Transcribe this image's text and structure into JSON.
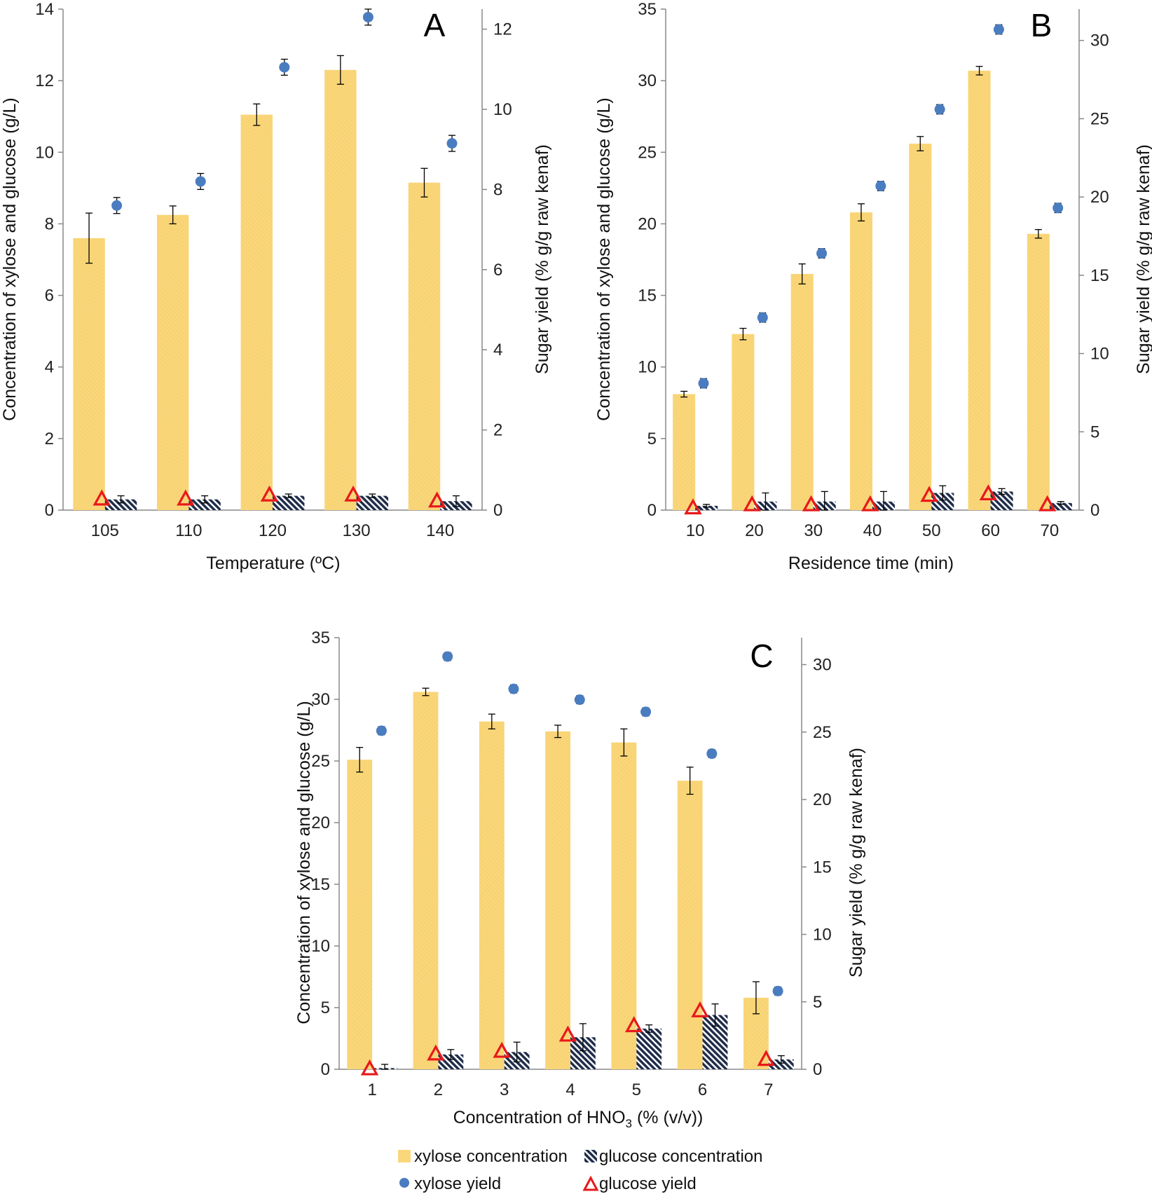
{
  "colors": {
    "xylose_bar": "#FAD77B",
    "glucose_bar_stripe": "#1F2D4A",
    "xylose_yield": "#4A7CC0",
    "glucose_yield": "#E8191B",
    "axis": "#888888"
  },
  "legend": {
    "xylose_concentration": "xylose concentration",
    "glucose_concentration": "glucose concentration",
    "xylose_yield": "xylose yield",
    "glucose_yield": "glucose yield"
  },
  "chart_data": [
    {
      "panel": "A",
      "type": "bar",
      "xlabel": "Temperature (ºC)",
      "ylabel": "Concentration of xylose and glucose (g/L)",
      "y2label": "Sugar yield (% g/g raw kenaf)",
      "ylim": [
        0,
        14
      ],
      "yticks": [
        "0",
        "2",
        "4",
        "6",
        "8",
        "10",
        "12",
        "14"
      ],
      "y2lim": [
        0,
        12.5
      ],
      "y2ticks": [
        "0",
        "2",
        "4",
        "6",
        "8",
        "10",
        "12"
      ],
      "categories": [
        "105",
        "110",
        "120",
        "130",
        "140"
      ],
      "series": [
        {
          "name": "xylose concentration",
          "kind": "bar",
          "values": [
            7.6,
            8.25,
            11.05,
            12.3,
            9.15
          ],
          "errors": [
            0.7,
            0.25,
            0.3,
            0.4,
            0.4
          ]
        },
        {
          "name": "glucose concentration",
          "kind": "bar",
          "values": [
            0.3,
            0.3,
            0.4,
            0.4,
            0.25
          ],
          "errors": [
            0.1,
            0.1,
            0.05,
            0.05,
            0.15
          ]
        },
        {
          "name": "xylose yield",
          "kind": "scatter",
          "axis": "y2",
          "values": [
            7.6,
            8.2,
            11.05,
            12.3,
            9.15
          ],
          "errors": [
            0.2,
            0.2,
            0.2,
            0.2,
            0.2
          ]
        },
        {
          "name": "glucose yield",
          "kind": "scatter",
          "axis": "y2",
          "values": [
            0.3,
            0.3,
            0.4,
            0.4,
            0.25
          ],
          "errors": [
            0.05,
            0.05,
            0.05,
            0.05,
            0.05
          ]
        }
      ]
    },
    {
      "panel": "B",
      "type": "bar",
      "xlabel": "Residence time (min)",
      "ylabel": "Concentration of xylose and glucose (g/L)",
      "y2label": "Sugar yield (% g/g raw kenaf)",
      "ylim": [
        0,
        35
      ],
      "yticks": [
        "0",
        "5",
        "10",
        "15",
        "20",
        "25",
        "30",
        "35"
      ],
      "y2lim": [
        0,
        32
      ],
      "y2ticks": [
        "0",
        "5",
        "10",
        "15",
        "20",
        "25",
        "30"
      ],
      "categories": [
        "10",
        "20",
        "30",
        "40",
        "50",
        "60",
        "70"
      ],
      "series": [
        {
          "name": "xylose concentration",
          "kind": "bar",
          "values": [
            8.1,
            12.3,
            16.5,
            20.8,
            25.6,
            30.7,
            19.3
          ],
          "errors": [
            0.2,
            0.4,
            0.7,
            0.6,
            0.5,
            0.3,
            0.3
          ]
        },
        {
          "name": "glucose concentration",
          "kind": "bar",
          "values": [
            0.3,
            0.6,
            0.6,
            0.6,
            1.2,
            1.3,
            0.5
          ],
          "errors": [
            0.1,
            0.6,
            0.7,
            0.7,
            0.5,
            0.2,
            0.1
          ]
        },
        {
          "name": "xylose yield",
          "kind": "scatter",
          "axis": "y2",
          "values": [
            8.1,
            12.3,
            16.4,
            20.7,
            25.6,
            30.7,
            19.3
          ],
          "errors": [
            0.3,
            0.3,
            0.3,
            0.3,
            0.3,
            0.3,
            0.3
          ]
        },
        {
          "name": "glucose yield",
          "kind": "scatter",
          "axis": "y2",
          "values": [
            0.2,
            0.4,
            0.4,
            0.4,
            1.0,
            1.1,
            0.4
          ],
          "errors": [
            0.05,
            0.05,
            0.05,
            0.05,
            0.05,
            0.05,
            0.05
          ]
        }
      ]
    },
    {
      "panel": "C",
      "type": "bar",
      "xlabel": "Concentration of HNO",
      "xlabel_sub": "3",
      "xlabel_tail": " (% (v/v))",
      "ylabel": "Concentration of xylose and glucose (g/L)",
      "y2label": "Sugar yield (% g/g raw kenaf)",
      "ylim": [
        0,
        35
      ],
      "yticks": [
        "0",
        "5",
        "10",
        "15",
        "20",
        "25",
        "30",
        "35"
      ],
      "y2lim": [
        0,
        32
      ],
      "y2ticks": [
        "0",
        "5",
        "10",
        "15",
        "20",
        "25",
        "30"
      ],
      "categories": [
        "1",
        "2",
        "3",
        "4",
        "5",
        "6",
        "7"
      ],
      "series": [
        {
          "name": "xylose concentration",
          "kind": "bar",
          "values": [
            25.1,
            30.6,
            28.2,
            27.4,
            26.5,
            23.4,
            5.8
          ],
          "errors": [
            1.0,
            0.3,
            0.6,
            0.5,
            1.1,
            1.1,
            1.3
          ]
        },
        {
          "name": "glucose concentration",
          "kind": "bar",
          "values": [
            0.1,
            1.2,
            1.4,
            2.6,
            3.3,
            4.4,
            0.8
          ],
          "errors": [
            0.3,
            0.4,
            0.8,
            1.1,
            0.3,
            0.9,
            0.3
          ]
        },
        {
          "name": "xylose yield",
          "kind": "scatter",
          "axis": "y2",
          "values": [
            25.1,
            30.6,
            28.2,
            27.4,
            26.5,
            23.4,
            5.8
          ],
          "errors": [
            0.3,
            0.3,
            0.3,
            0.3,
            0.3,
            0.3,
            0.3
          ]
        },
        {
          "name": "glucose yield",
          "kind": "scatter",
          "axis": "y2",
          "values": [
            0.1,
            1.2,
            1.4,
            2.6,
            3.3,
            4.4,
            0.8
          ],
          "errors": [
            0.05,
            0.05,
            0.05,
            0.05,
            0.05,
            0.05,
            0.05
          ]
        }
      ]
    }
  ]
}
